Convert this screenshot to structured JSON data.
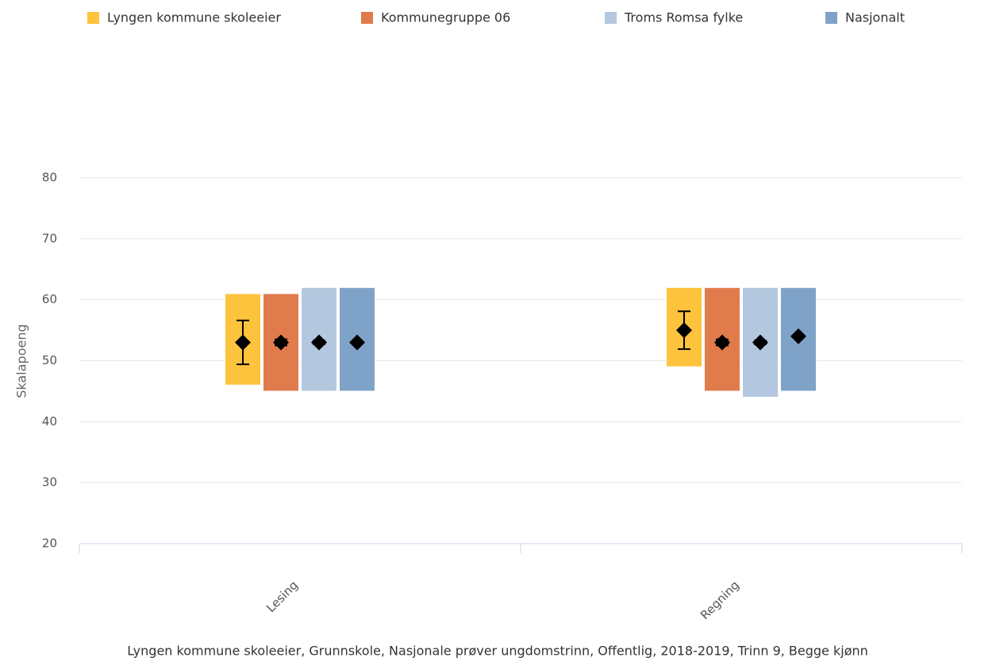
{
  "chart_data": {
    "type": "floating-bar",
    "categories": [
      "Lesing",
      "Regning"
    ],
    "series": [
      {
        "name": "Lyngen kommune skoleeier",
        "color": "#fdc33d",
        "low": [
          46,
          49
        ],
        "high": [
          61,
          62
        ],
        "values": [
          53,
          55
        ],
        "errors": [
          3.6,
          3.1
        ]
      },
      {
        "name": "Kommunegruppe 06",
        "color": "#e07b4c",
        "low": [
          45,
          45
        ],
        "high": [
          61,
          62
        ],
        "values": [
          53,
          53
        ],
        "errors": [
          0.5,
          0.5
        ]
      },
      {
        "name": "Troms Romsa fylke",
        "color": "#b3c8de",
        "low": [
          45,
          44
        ],
        "high": [
          62,
          62
        ],
        "values": [
          53,
          53
        ],
        "errors": [
          0.3,
          0.3
        ]
      },
      {
        "name": "Nasjonalt",
        "color": "#7fa3c8",
        "low": [
          45,
          45
        ],
        "high": [
          62,
          62
        ],
        "values": [
          53,
          54
        ],
        "errors": [
          0.1,
          0.1
        ]
      }
    ],
    "ylabel": "Skalapoeng",
    "ylim": [
      20,
      80
    ],
    "yticks": [
      20,
      30,
      40,
      50,
      60,
      70,
      80
    ],
    "grid": true,
    "legend": "top",
    "caption": "Lyngen kommune skoleeier, Grunnskole, Nasjonale prøver ungdomstrinn, Offentlig, 2018-2019, Trinn 9, Begge kjønn"
  }
}
